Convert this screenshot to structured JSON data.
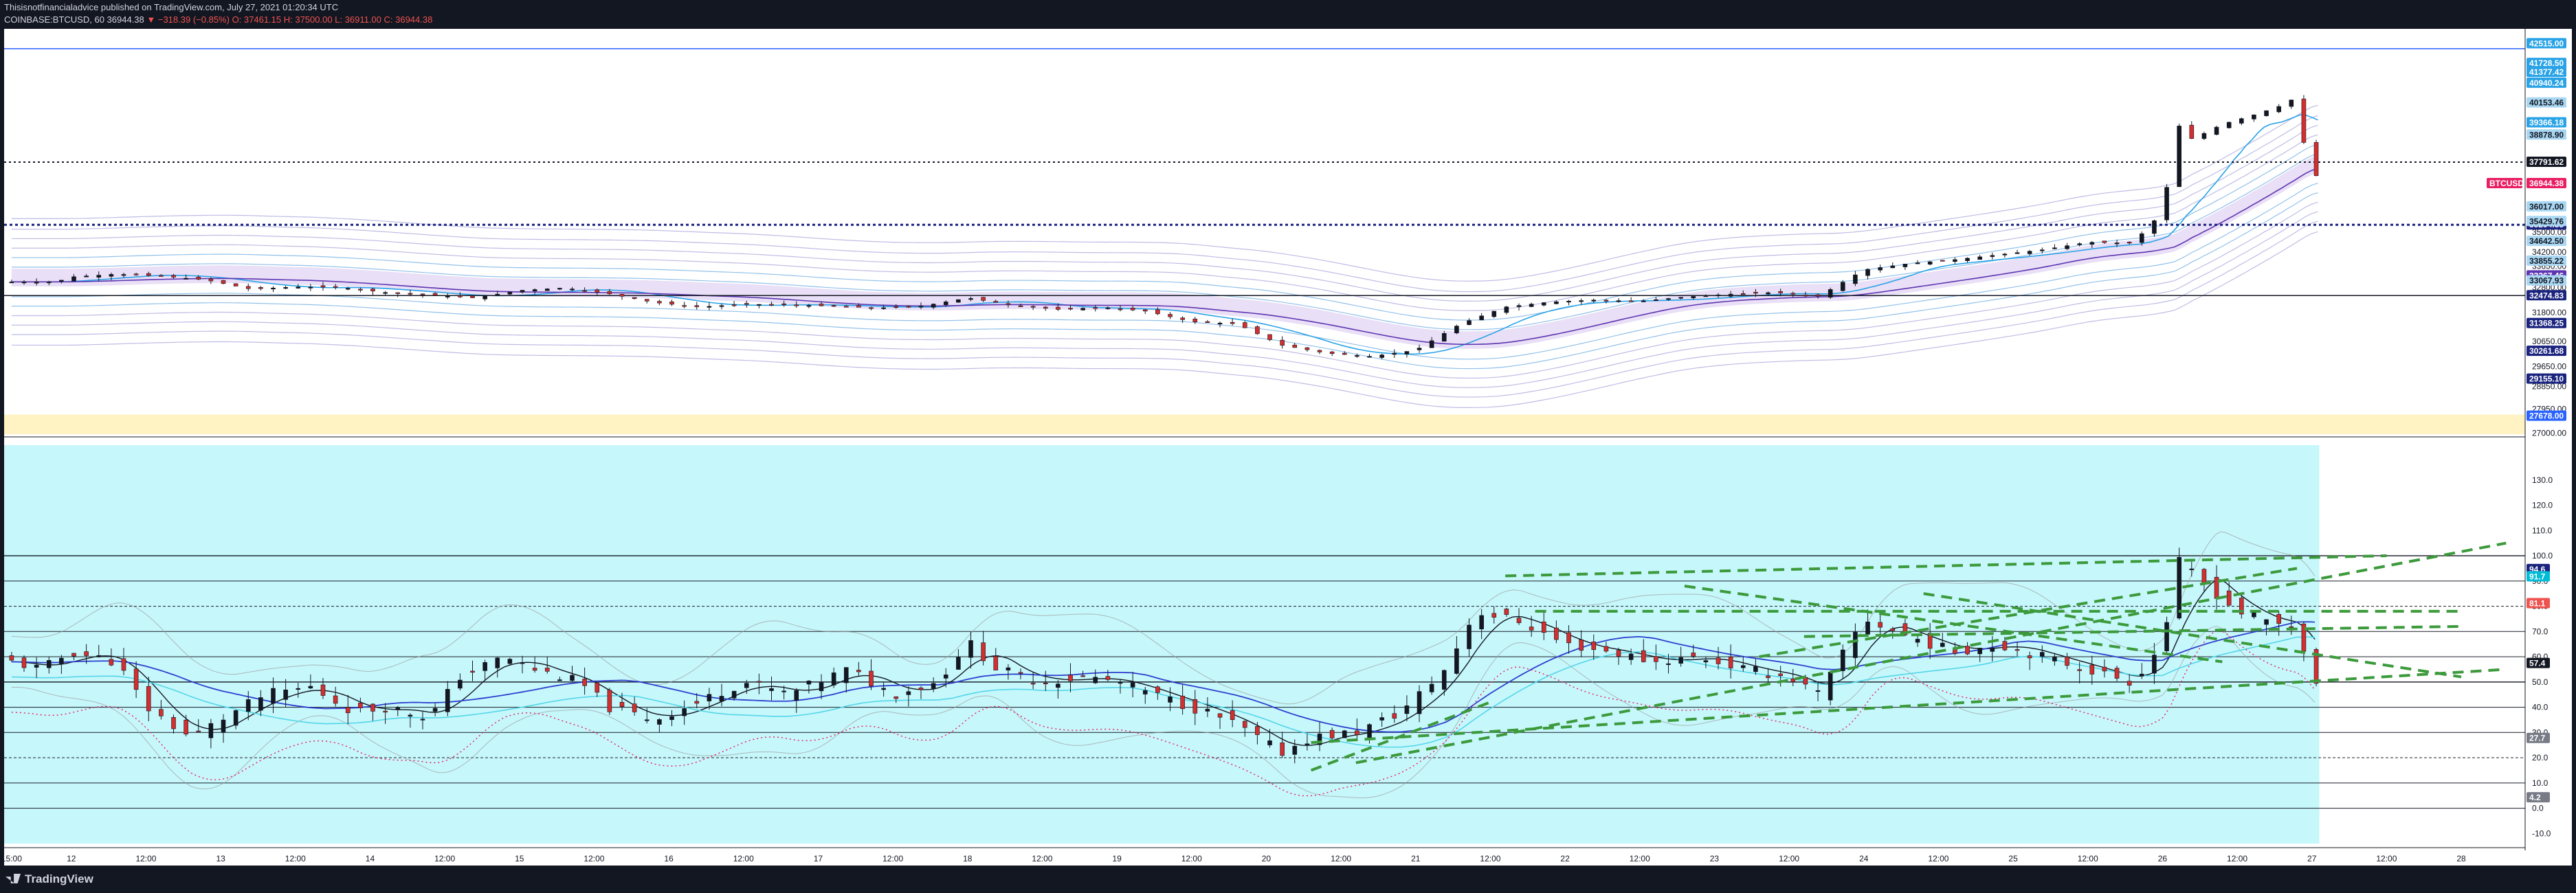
{
  "header": {
    "line1_author": "Thisisnotfinancialadvice",
    "line1_rest": " published on TradingView.com, July 27, 2021 01:20:34 UTC",
    "line2_prefix": "COINBASE:BTCUSD, 60  36944.38 ",
    "line2_arrow": "▼",
    "line2_change": " −318.39 (−0.85%) ",
    "line2_ohlc": "O: 37461.15  H: 37500.00  L: 36911.00  C: 36944.38"
  },
  "footer": {
    "logo_text": "TradingView"
  },
  "colors": {
    "up": "#131722",
    "down": "#d32f2f",
    "osc_bg": "#c6f7fb",
    "band_fill": "#e7dcf5",
    "dash_green": "#3c9a3c",
    "blue_line": "#2e3fcf",
    "cyan_line": "#54d6e8"
  },
  "chart_data": [
    {
      "type": "candlestick",
      "symbol": "COINBASE:BTCUSD",
      "timeframe": "60",
      "ylim": [
        26900,
        43100
      ],
      "price_axis_ticks": [
        27000,
        27950,
        28850,
        29650,
        30650,
        31800,
        32800,
        33650,
        34200,
        35000
      ],
      "horizontal_levels": [
        42310,
        37791.62,
        35294.55,
        32474.83,
        27678
      ],
      "price_tags": [
        {
          "label": "42515.00",
          "value": 42515,
          "bg": "#29a3e6",
          "fg": "#ffffff"
        },
        {
          "label": "41728.50",
          "value": 41728.5,
          "bg": "#29a3e6",
          "fg": "#ffffff"
        },
        {
          "label": "41377.42",
          "value": 41377.42,
          "bg": "#29a3e6",
          "fg": "#ffffff"
        },
        {
          "label": "40940.24",
          "value": 40940.24,
          "bg": "#29a3e6",
          "fg": "#ffffff"
        },
        {
          "label": "40153.46",
          "value": 40153.46,
          "bg": "#a9d7f2",
          "fg": "#131722"
        },
        {
          "label": "39366.18",
          "value": 39366.18,
          "bg": "#29a3e6",
          "fg": "#ffffff"
        },
        {
          "label": "38878.90",
          "value": 38878.9,
          "bg": "#a9d7f2",
          "fg": "#131722"
        },
        {
          "label": "37791.62",
          "value": 37791.62,
          "bg": "#131722",
          "fg": "#ffffff"
        },
        {
          "label": "36944.38",
          "value": 36944.38,
          "bg": "#e91e63",
          "fg": "#ffffff"
        },
        {
          "label": "36017.00",
          "value": 36017,
          "bg": "#a9d7f2",
          "fg": "#131722"
        },
        {
          "label": "35294.55",
          "value": 35294.55,
          "bg": "#1a237e",
          "fg": "#ffffff"
        },
        {
          "label": "35429.76",
          "value": 35429.76,
          "bg": "#a9d7f2",
          "fg": "#131722"
        },
        {
          "label": "34642.50",
          "value": 34642.5,
          "bg": "#a9d7f2",
          "fg": "#131722"
        },
        {
          "label": "33855.22",
          "value": 33855.22,
          "bg": "#a9d7f2",
          "fg": "#131722"
        },
        {
          "label": "33267.46",
          "value": 33267.46,
          "bg": "#5e35b1",
          "fg": "#ffffff"
        },
        {
          "label": "33067.93",
          "value": 33067.93,
          "bg": "#a9d7f2",
          "fg": "#131722"
        },
        {
          "label": "32474.83",
          "value": 32474.83,
          "bg": "#1a237e",
          "fg": "#ffffff"
        },
        {
          "label": "31368.25",
          "value": 31368.25,
          "bg": "#1a237e",
          "fg": "#ffffff"
        },
        {
          "label": "30261.68",
          "value": 30261.68,
          "bg": "#1a237e",
          "fg": "#ffffff"
        },
        {
          "label": "29155.10",
          "value": 29155.1,
          "bg": "#1a237e",
          "fg": "#ffffff"
        },
        {
          "label": "27678.00",
          "value": 27678,
          "bg": "#2962ff",
          "fg": "#ffffff"
        }
      ],
      "series_label": "BTCUSD",
      "last_price": 36944.38,
      "ohlc_path": [
        {
          "day": 11.9,
          "close": 33020
        },
        {
          "day": 12.0,
          "close": 33220
        },
        {
          "day": 12.3,
          "close": 33330
        },
        {
          "day": 12.6,
          "close": 33250
        },
        {
          "day": 12.9,
          "close": 33100
        },
        {
          "day": 13.2,
          "close": 32730
        },
        {
          "day": 13.5,
          "close": 32820
        },
        {
          "day": 13.8,
          "close": 32800
        },
        {
          "day": 14.1,
          "close": 32600
        },
        {
          "day": 14.4,
          "close": 32500
        },
        {
          "day": 14.7,
          "close": 32380
        },
        {
          "day": 15.0,
          "close": 32680
        },
        {
          "day": 15.3,
          "close": 32780
        },
        {
          "day": 15.6,
          "close": 32550
        },
        {
          "day": 15.9,
          "close": 32200
        },
        {
          "day": 16.2,
          "close": 32020
        },
        {
          "day": 16.5,
          "close": 32130
        },
        {
          "day": 16.8,
          "close": 32110
        },
        {
          "day": 17.1,
          "close": 32050
        },
        {
          "day": 17.4,
          "close": 31980
        },
        {
          "day": 17.7,
          "close": 32060
        },
        {
          "day": 18.0,
          "close": 32380
        },
        {
          "day": 18.3,
          "close": 32100
        },
        {
          "day": 18.6,
          "close": 31920
        },
        {
          "day": 18.9,
          "close": 32010
        },
        {
          "day": 19.2,
          "close": 31850
        },
        {
          "day": 19.5,
          "close": 31430
        },
        {
          "day": 19.8,
          "close": 31350
        },
        {
          "day": 20.1,
          "close": 30500
        },
        {
          "day": 20.4,
          "close": 30180
        },
        {
          "day": 20.7,
          "close": 30050
        },
        {
          "day": 21.0,
          "close": 30300
        },
        {
          "day": 21.3,
          "close": 31350
        },
        {
          "day": 21.6,
          "close": 32020
        },
        {
          "day": 21.9,
          "close": 32220
        },
        {
          "day": 22.2,
          "close": 32300
        },
        {
          "day": 22.5,
          "close": 32250
        },
        {
          "day": 22.8,
          "close": 32420
        },
        {
          "day": 23.1,
          "close": 32530
        },
        {
          "day": 23.4,
          "close": 32600
        },
        {
          "day": 23.7,
          "close": 32450
        },
        {
          "day": 24.0,
          "close": 33500
        },
        {
          "day": 24.3,
          "close": 33750
        },
        {
          "day": 24.6,
          "close": 33900
        },
        {
          "day": 24.9,
          "close": 34100
        },
        {
          "day": 25.2,
          "close": 34300
        },
        {
          "day": 25.5,
          "close": 34600
        },
        {
          "day": 25.8,
          "close": 34560
        },
        {
          "day": 26.0,
          "close": 35800
        },
        {
          "day": 26.1,
          "close": 39300
        },
        {
          "day": 26.2,
          "close": 38700
        },
        {
          "day": 26.4,
          "close": 39300
        },
        {
          "day": 26.6,
          "close": 39650
        },
        {
          "day": 26.8,
          "close": 40050
        },
        {
          "day": 26.9,
          "close": 40400
        },
        {
          "day": 26.95,
          "close": 38400
        },
        {
          "day": 27.05,
          "close": 36944.38
        }
      ],
      "x_ticks": [
        {
          "label": "15:00",
          "day": 11.6
        },
        {
          "label": "12",
          "day": 12.0
        },
        {
          "label": "12:00",
          "day": 12.5
        },
        {
          "label": "13",
          "day": 13.0
        },
        {
          "label": "12:00",
          "day": 13.5
        },
        {
          "label": "14",
          "day": 14.0
        },
        {
          "label": "12:00",
          "day": 14.5
        },
        {
          "label": "15",
          "day": 15.0
        },
        {
          "label": "12:00",
          "day": 15.5
        },
        {
          "label": "16",
          "day": 16.0
        },
        {
          "label": "12:00",
          "day": 16.5
        },
        {
          "label": "17",
          "day": 17.0
        },
        {
          "label": "12:00",
          "day": 17.5
        },
        {
          "label": "18",
          "day": 18.0
        },
        {
          "label": "12:00",
          "day": 18.5
        },
        {
          "label": "19",
          "day": 19.0
        },
        {
          "label": "12:00",
          "day": 19.5
        },
        {
          "label": "20",
          "day": 20.0
        },
        {
          "label": "12:00",
          "day": 20.5
        },
        {
          "label": "21",
          "day": 21.0
        },
        {
          "label": "12:00",
          "day": 21.5
        },
        {
          "label": "22",
          "day": 22.0
        },
        {
          "label": "12:00",
          "day": 22.5
        },
        {
          "label": "23",
          "day": 23.0
        },
        {
          "label": "12:00",
          "day": 23.5
        },
        {
          "label": "24",
          "day": 24.0
        },
        {
          "label": "12:00",
          "day": 24.5
        },
        {
          "label": "25",
          "day": 25.0
        },
        {
          "label": "12:00",
          "day": 25.5
        },
        {
          "label": "26",
          "day": 26.0
        },
        {
          "label": "12:00",
          "day": 26.5
        },
        {
          "label": "27",
          "day": 27.0
        },
        {
          "label": "12:00",
          "day": 27.5
        },
        {
          "label": "28",
          "day": 28.0
        }
      ],
      "xlim": [
        11.55,
        28.4
      ]
    },
    {
      "type": "line",
      "panel": "oscillator",
      "ylim": [
        -14,
        140
      ],
      "axis_ticks": [
        -10.0,
        0.0,
        10.0,
        20.0,
        30.0,
        40.0,
        50.0,
        60.0,
        70.0,
        80.0,
        90.0,
        100.0,
        110.0,
        120.0,
        130.0
      ],
      "horizontal_levels": [
        100,
        90,
        80,
        70,
        60,
        50,
        40,
        30,
        20,
        10,
        0
      ],
      "value_tags": [
        {
          "label": "94.6",
          "value": 94.6,
          "bg": "#1a237e",
          "fg": "#ffffff"
        },
        {
          "label": "91.7",
          "value": 91.7,
          "bg": "#00bcd4",
          "fg": "#ffffff"
        },
        {
          "label": "81.1",
          "value": 81.1,
          "bg": "#ef5350",
          "fg": "#ffffff"
        },
        {
          "label": "57.4",
          "value": 57.4,
          "bg": "#131722",
          "fg": "#ffffff"
        },
        {
          "label": "27.7",
          "value": 27.7,
          "bg": "#787b86",
          "fg": "#ffffff"
        },
        {
          "label": "4.2",
          "value": 4.2,
          "bg": "#787b86",
          "fg": "#ffffff"
        }
      ],
      "oscillator_path": [
        {
          "day": 11.6,
          "v": 58
        },
        {
          "day": 11.8,
          "v": 55
        },
        {
          "day": 12.0,
          "v": 62
        },
        {
          "day": 12.3,
          "v": 58
        },
        {
          "day": 12.5,
          "v": 40
        },
        {
          "day": 12.8,
          "v": 28
        },
        {
          "day": 13.0,
          "v": 35
        },
        {
          "day": 13.3,
          "v": 45
        },
        {
          "day": 13.6,
          "v": 48
        },
        {
          "day": 13.9,
          "v": 38
        },
        {
          "day": 14.1,
          "v": 40
        },
        {
          "day": 14.4,
          "v": 36
        },
        {
          "day": 14.6,
          "v": 52
        },
        {
          "day": 14.9,
          "v": 60
        },
        {
          "day": 15.1,
          "v": 55
        },
        {
          "day": 15.4,
          "v": 50
        },
        {
          "day": 15.6,
          "v": 40
        },
        {
          "day": 15.9,
          "v": 35
        },
        {
          "day": 16.2,
          "v": 42
        },
        {
          "day": 16.5,
          "v": 50
        },
        {
          "day": 16.8,
          "v": 45
        },
        {
          "day": 17.0,
          "v": 50
        },
        {
          "day": 17.2,
          "v": 55
        },
        {
          "day": 17.5,
          "v": 45
        },
        {
          "day": 17.8,
          "v": 50
        },
        {
          "day": 18.0,
          "v": 66
        },
        {
          "day": 18.2,
          "v": 55
        },
        {
          "day": 18.5,
          "v": 50
        },
        {
          "day": 18.8,
          "v": 52
        },
        {
          "day": 19.0,
          "v": 50
        },
        {
          "day": 19.3,
          "v": 44
        },
        {
          "day": 19.6,
          "v": 38
        },
        {
          "day": 19.8,
          "v": 33
        },
        {
          "day": 20.1,
          "v": 22
        },
        {
          "day": 20.3,
          "v": 28
        },
        {
          "day": 20.6,
          "v": 30
        },
        {
          "day": 20.9,
          "v": 38
        },
        {
          "day": 21.2,
          "v": 55
        },
        {
          "day": 21.4,
          "v": 78
        },
        {
          "day": 21.7,
          "v": 74
        },
        {
          "day": 22.0,
          "v": 65
        },
        {
          "day": 22.3,
          "v": 62
        },
        {
          "day": 22.6,
          "v": 58
        },
        {
          "day": 22.9,
          "v": 60
        },
        {
          "day": 23.2,
          "v": 55
        },
        {
          "day": 23.5,
          "v": 52
        },
        {
          "day": 23.7,
          "v": 45
        },
        {
          "day": 24.0,
          "v": 75
        },
        {
          "day": 24.3,
          "v": 68
        },
        {
          "day": 24.6,
          "v": 62
        },
        {
          "day": 24.9,
          "v": 65
        },
        {
          "day": 25.2,
          "v": 60
        },
        {
          "day": 25.5,
          "v": 55
        },
        {
          "day": 25.8,
          "v": 50
        },
        {
          "day": 26.0,
          "v": 65
        },
        {
          "day": 26.1,
          "v": 98
        },
        {
          "day": 26.3,
          "v": 88
        },
        {
          "day": 26.5,
          "v": 78
        },
        {
          "day": 26.7,
          "v": 74
        },
        {
          "day": 26.9,
          "v": 72
        },
        {
          "day": 27.0,
          "v": 52
        },
        {
          "day": 27.1,
          "v": 42
        }
      ],
      "trendlines_dashed": [
        {
          "from": {
            "day": 20.3,
            "v": 15
          },
          "to": {
            "day": 21.5,
            "v": 42
          }
        },
        {
          "from": {
            "day": 20.6,
            "v": 18
          },
          "to": {
            "day": 28.3,
            "v": 105
          }
        },
        {
          "from": {
            "day": 20.3,
            "v": 26
          },
          "to": {
            "day": 28.3,
            "v": 55
          }
        },
        {
          "from": {
            "day": 21.6,
            "v": 92
          },
          "to": {
            "day": 27.5,
            "v": 100
          }
        },
        {
          "from": {
            "day": 21.8,
            "v": 78
          },
          "to": {
            "day": 28.0,
            "v": 78
          }
        },
        {
          "from": {
            "day": 22.8,
            "v": 88
          },
          "to": {
            "day": 26.4,
            "v": 58
          }
        },
        {
          "from": {
            "day": 23.3,
            "v": 60
          },
          "to": {
            "day": 26.9,
            "v": 95
          }
        },
        {
          "from": {
            "day": 23.6,
            "v": 68
          },
          "to": {
            "day": 28.0,
            "v": 72
          }
        },
        {
          "from": {
            "day": 24.4,
            "v": 85
          },
          "to": {
            "day": 28.0,
            "v": 52
          }
        }
      ]
    }
  ]
}
